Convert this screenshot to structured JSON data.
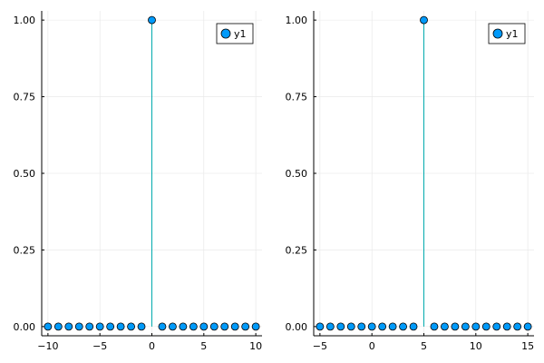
{
  "chart_data": [
    {
      "type": "stem",
      "x": [
        -10,
        -9,
        -8,
        -7,
        -6,
        -5,
        -4,
        -3,
        -2,
        -1,
        0,
        1,
        2,
        3,
        4,
        5,
        6,
        7,
        8,
        9,
        10
      ],
      "series": [
        {
          "name": "y1",
          "values": [
            0,
            0,
            0,
            0,
            0,
            0,
            0,
            0,
            0,
            0,
            1,
            0,
            0,
            0,
            0,
            0,
            0,
            0,
            0,
            0,
            0
          ]
        }
      ],
      "xlim": [
        -10.6,
        10.6
      ],
      "ylim": [
        -0.03,
        1.03
      ],
      "xticks": [
        -10,
        -5,
        0,
        5,
        10
      ],
      "xtick_labels": [
        "−10",
        "−5",
        "0",
        "5",
        "10"
      ],
      "yticks": [
        0,
        0.25,
        0.5,
        0.75,
        1.0
      ],
      "ytick_labels": [
        "0.00",
        "0.25",
        "0.50",
        "0.75",
        "1.00"
      ],
      "grid": true,
      "legend_position": "top-right"
    },
    {
      "type": "stem",
      "x": [
        -5,
        -4,
        -3,
        -2,
        -1,
        0,
        1,
        2,
        3,
        4,
        5,
        6,
        7,
        8,
        9,
        10,
        11,
        12,
        13,
        14,
        15
      ],
      "series": [
        {
          "name": "y1",
          "values": [
            0,
            0,
            0,
            0,
            0,
            0,
            0,
            0,
            0,
            0,
            1,
            0,
            0,
            0,
            0,
            0,
            0,
            0,
            0,
            0,
            0
          ]
        }
      ],
      "xlim": [
        -5.6,
        15.6
      ],
      "ylim": [
        -0.03,
        1.03
      ],
      "xticks": [
        -5,
        0,
        5,
        10,
        15
      ],
      "xtick_labels": [
        "−5",
        "0",
        "5",
        "10",
        "15"
      ],
      "yticks": [
        0,
        0.25,
        0.5,
        0.75,
        1.0
      ],
      "ytick_labels": [
        "0.00",
        "0.25",
        "0.50",
        "0.75",
        "1.00"
      ],
      "grid": true,
      "legend_position": "top-right"
    }
  ],
  "colors": {
    "marker_fill": "#009AFA",
    "marker_stroke": "#000000",
    "stem_line": "#00A9AD",
    "grid": "#E6E6E6",
    "axis": "#000000"
  }
}
